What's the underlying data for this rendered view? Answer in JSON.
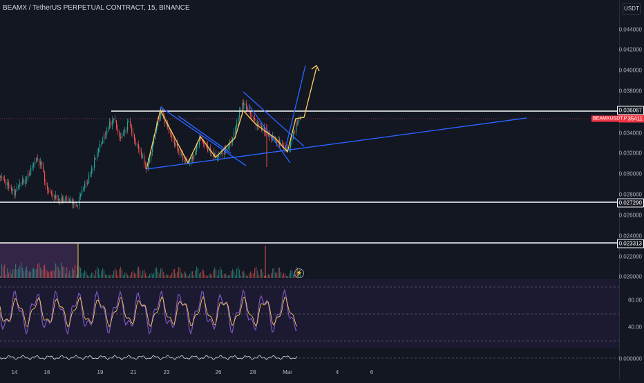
{
  "title": "BEAMX / TetherUS PERPETUAL CONTRACT, 15, BINANCE",
  "currency_button": "USDT",
  "price_axis": [
    "0.044000",
    "0.042000",
    "0.040000",
    "0.038000",
    "0.034000",
    "0.032000",
    "0.030000",
    "0.028000",
    "0.026000",
    "0.024000",
    "0.022000",
    "0.020000"
  ],
  "price_labels": {
    "resistance": "0.036067",
    "current": "0.035411",
    "support1": "0.027290",
    "support2": "0.023313"
  },
  "symbol_tag": "BEAMXUSDT.P",
  "rsi_axis": [
    "60.00",
    "40.00"
  ],
  "osc_axis": "0.000000",
  "time_axis": [
    "14",
    "16",
    "19",
    "21",
    "23",
    "26",
    "28",
    "Mar",
    "4",
    "6"
  ],
  "colors": {
    "background": "#131722",
    "up": "#26a69a",
    "down": "#ef5350",
    "trendline": "#2962ff",
    "path": "#f7c65c",
    "rsi": "#7e57c2"
  },
  "icons": [
    "lightning-icon"
  ]
}
